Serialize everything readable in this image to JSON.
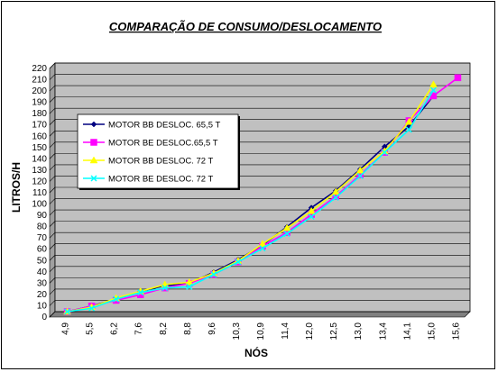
{
  "chart_data": {
    "type": "line",
    "title": "COMPARAÇÃO DE CONSUMO/DESLOCAMENTO",
    "xlabel": "NÓS",
    "ylabel": "LITROS/H",
    "categories": [
      "4,9",
      "5,5",
      "6,2",
      "7,6",
      "8,2",
      "8,8",
      "9,6",
      "10,3",
      "10,9",
      "11,4",
      "12,0",
      "12,5",
      "13,0",
      "13,4",
      "14,1",
      "15,0",
      "15,6"
    ],
    "ylim": [
      0,
      220
    ],
    "ytick_step": 10,
    "grid": true,
    "legend_position": "left-middle",
    "plot_background": "#c0c0c0",
    "series": [
      {
        "name": "MOTOR BB DESLOC. 65,5 T",
        "color": "#000080",
        "marker": "diamond",
        "values": [
          0,
          5,
          11,
          18,
          23,
          25,
          35,
          46,
          59,
          75,
          92,
          107,
          126,
          146,
          164,
          191,
          null
        ]
      },
      {
        "name": "MOTOR BE DESLOC.65,5 T",
        "color": "#ff00ff",
        "marker": "square",
        "values": [
          0,
          5,
          10,
          15,
          21,
          25,
          33,
          44,
          58,
          70,
          86,
          102,
          121,
          141,
          169,
          191,
          207
        ]
      },
      {
        "name": "MOTOR BB DESLOC. 72 T",
        "color": "#ffff00",
        "marker": "triangle",
        "values": [
          0,
          4,
          12,
          18,
          24,
          26,
          34,
          45,
          60,
          74,
          89,
          106,
          125,
          142,
          168,
          201,
          null
        ]
      },
      {
        "name": "MOTOR BE DESLOC. 72 T",
        "color": "#00ffff",
        "marker": "x",
        "values": [
          0,
          3,
          11,
          17,
          21,
          22,
          33,
          44,
          56,
          69,
          84,
          101,
          120,
          141,
          161,
          196,
          null
        ]
      }
    ]
  }
}
